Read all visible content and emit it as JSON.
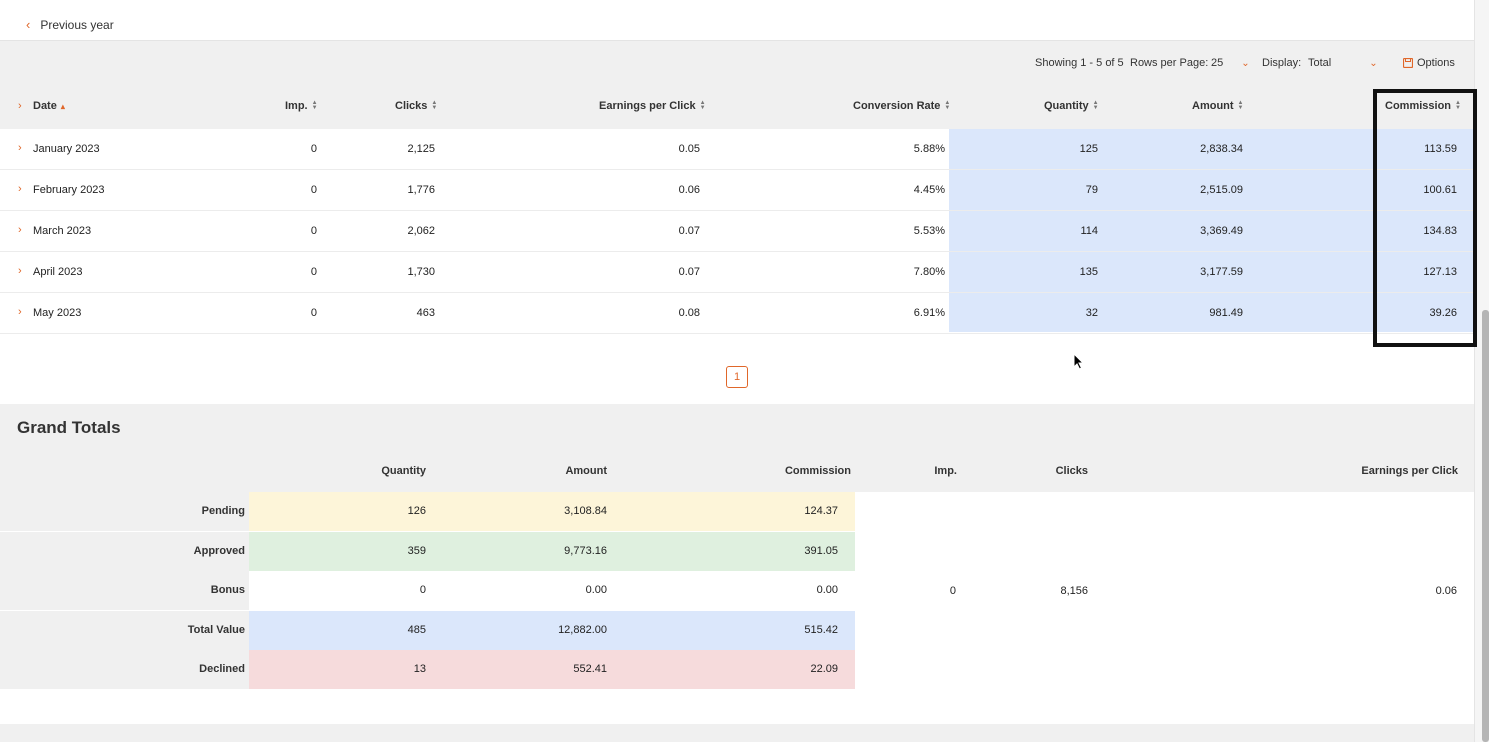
{
  "nav": {
    "previous_label": "Previous year",
    "chevron_icon": "chevron-left-icon"
  },
  "toolbar": {
    "showing": "Showing 1 - 5 of 5",
    "rows_per_page_label": "Rows per Page:",
    "rows_per_page_value": "25",
    "display_label": "Display:",
    "display_value": "Total",
    "options_label": "Options",
    "accent": "#e0672a"
  },
  "table": {
    "columns": [
      "Date",
      "Imp.",
      "Clicks",
      "Earnings per Click",
      "Conversion Rate",
      "Quantity",
      "Amount",
      "Commission"
    ],
    "rows": [
      {
        "date": "January 2023",
        "imp": "0",
        "clicks": "2,125",
        "epc": "0.05",
        "conv": "5.88%",
        "qty": "125",
        "amount": "2,838.34",
        "commission": "113.59"
      },
      {
        "date": "February 2023",
        "imp": "0",
        "clicks": "1,776",
        "epc": "0.06",
        "conv": "4.45%",
        "qty": "79",
        "amount": "2,515.09",
        "commission": "100.61"
      },
      {
        "date": "March 2023",
        "imp": "0",
        "clicks": "2,062",
        "epc": "0.07",
        "conv": "5.53%",
        "qty": "114",
        "amount": "3,369.49",
        "commission": "134.83"
      },
      {
        "date": "April 2023",
        "imp": "0",
        "clicks": "1,730",
        "epc": "0.07",
        "conv": "7.80%",
        "qty": "135",
        "amount": "3,177.59",
        "commission": "127.13"
      },
      {
        "date": "May 2023",
        "imp": "0",
        "clicks": "463",
        "epc": "0.08",
        "conv": "6.91%",
        "qty": "32",
        "amount": "981.49",
        "commission": "39.26"
      }
    ]
  },
  "pagination": {
    "current": "1"
  },
  "grand_totals": {
    "title": "Grand Totals",
    "columns": [
      "Quantity",
      "Amount",
      "Commission",
      "Imp.",
      "Clicks",
      "Earnings per Click"
    ],
    "rows": [
      {
        "label": "Pending",
        "qty": "126",
        "amount": "3,108.84",
        "commission": "124.37",
        "color": "#fdf5d9"
      },
      {
        "label": "Approved",
        "qty": "359",
        "amount": "9,773.16",
        "commission": "391.05",
        "color": "#dff0df"
      },
      {
        "label": "Bonus",
        "qty": "0",
        "amount": "0.00",
        "commission": "0.00"
      },
      {
        "label": "Total Value",
        "qty": "485",
        "amount": "12,882.00",
        "commission": "515.42",
        "color": "#dbe7fb"
      },
      {
        "label": "Declined",
        "qty": "13",
        "amount": "552.41",
        "commission": "22.09",
        "color": "#f6dbdc"
      }
    ],
    "imp": "0",
    "clicks": "8,156",
    "epc": "0.06"
  }
}
